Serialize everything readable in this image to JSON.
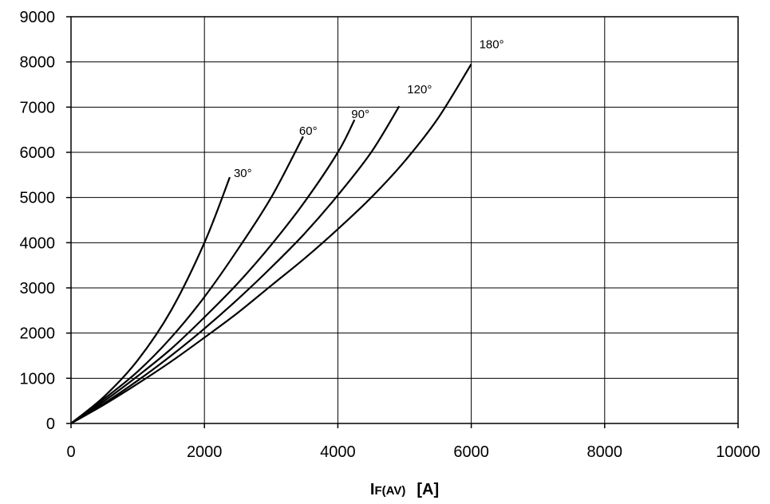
{
  "chart_data": {
    "type": "line",
    "xlabel_main": "I",
    "xlabel_sub": "F(AV)",
    "xlabel_unit": "[A]",
    "ylabel": "",
    "xlim": [
      0,
      10000
    ],
    "ylim": [
      0,
      9000
    ],
    "x_ticks": [
      "0",
      "2000",
      "4000",
      "6000",
      "8000",
      "10000"
    ],
    "y_ticks": [
      "0",
      "1000",
      "2000",
      "3000",
      "4000",
      "5000",
      "6000",
      "7000",
      "8000",
      "9000"
    ],
    "grid": true,
    "line_color": "#000000",
    "series": [
      {
        "name": "30°",
        "x": [
          0,
          500,
          1000,
          1500,
          2000,
          2380
        ],
        "y": [
          0,
          600,
          1400,
          2500,
          4000,
          5450
        ]
      },
      {
        "name": "60°",
        "x": [
          0,
          500,
          1000,
          1500,
          2000,
          2500,
          3000,
          3480
        ],
        "y": [
          0,
          550,
          1150,
          1900,
          2800,
          3850,
          5000,
          6350
        ]
      },
      {
        "name": "90°",
        "x": [
          0,
          500,
          1000,
          1500,
          2000,
          2500,
          3000,
          3500,
          4000,
          4250
        ],
        "y": [
          0,
          500,
          1050,
          1650,
          2350,
          3100,
          3950,
          4900,
          6000,
          6720
        ]
      },
      {
        "name": "120°",
        "x": [
          0,
          500,
          1000,
          1500,
          2000,
          2500,
          3000,
          3500,
          4000,
          4500,
          4920
        ],
        "y": [
          0,
          450,
          950,
          1500,
          2100,
          2750,
          3450,
          4200,
          5050,
          6000,
          7020
        ]
      },
      {
        "name": "180°",
        "x": [
          0,
          500,
          1000,
          1500,
          2000,
          2500,
          3000,
          3500,
          4000,
          4500,
          5000,
          5500,
          6000
        ],
        "y": [
          0,
          420,
          880,
          1370,
          1900,
          2450,
          3050,
          3650,
          4300,
          5000,
          5800,
          6750,
          7950
        ]
      }
    ]
  }
}
